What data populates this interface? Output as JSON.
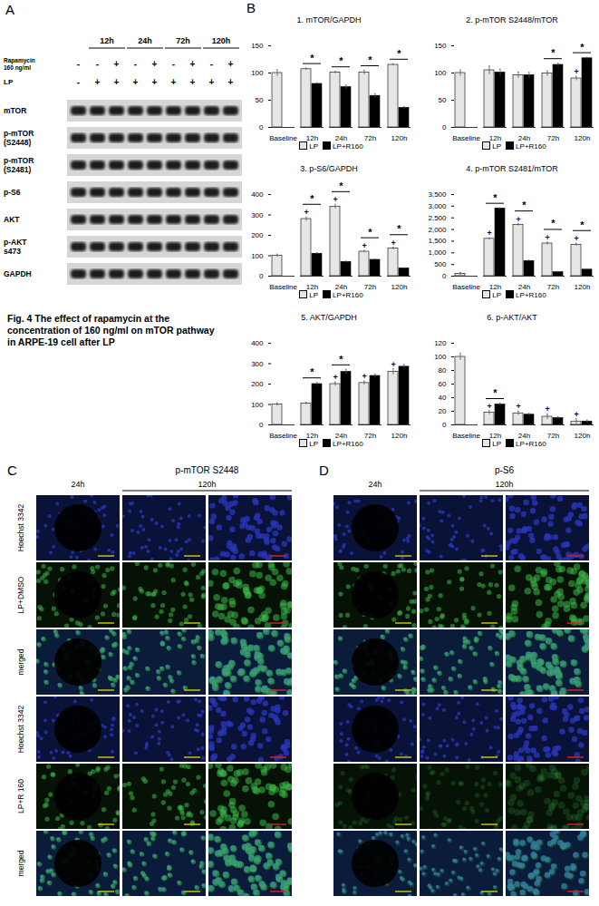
{
  "panel_a": {
    "label": "A",
    "times": [
      "12h",
      "24h",
      "72h",
      "120h"
    ],
    "treatments": [
      {
        "label": [
          "Rapamycin",
          "160 ng/ml"
        ],
        "signs": [
          "-",
          "-",
          "+",
          "-",
          "+",
          "-",
          "+",
          "-",
          "+"
        ]
      },
      {
        "label": [
          "LP"
        ],
        "signs": [
          "-",
          "+",
          "+",
          "+",
          "+",
          "+",
          "+",
          "+",
          "+"
        ]
      }
    ],
    "blots": [
      [
        "mTOR"
      ],
      [
        "p-mTOR",
        "(S2448)"
      ],
      [
        "p-mTOR",
        "(S2481)"
      ],
      [
        "p-S6"
      ],
      [
        "AKT"
      ],
      [
        "p-AKT",
        "s473"
      ],
      [
        "GAPDH"
      ]
    ]
  },
  "caption": "Fig. 4 The effect of rapamycin at the concentration of 160 ng/ml on mTOR pathway in ARPE-19 cell after LP",
  "panel_b_label": "B",
  "chart_data": [
    {
      "type": "bar",
      "title": "1. mTOR/GAPDH",
      "legend": "bottom",
      "categories": [
        "Baseline",
        "12h",
        "24h",
        "72h",
        "120h"
      ],
      "ylim": [
        0,
        150
      ],
      "yticks": [
        0,
        50,
        100,
        150
      ],
      "series": [
        {
          "name": "LP",
          "color": "#e6e6e6",
          "values": [
            100,
            107,
            101,
            101,
            115
          ],
          "errors": [
            6,
            2,
            2,
            4,
            2
          ]
        },
        {
          "name": "LP+R160",
          "color": "#000000",
          "values": [
            null,
            80,
            74,
            58,
            36
          ],
          "errors": [
            null,
            2,
            4,
            4,
            2
          ]
        }
      ],
      "annotations": [
        {
          "x": "12h",
          "text": "*"
        },
        {
          "x": "24h",
          "text": "*"
        },
        {
          "x": "72h",
          "text": "*"
        },
        {
          "x": "120h",
          "text": "*"
        }
      ]
    },
    {
      "type": "bar",
      "title": "2. p-mTOR S2448/mTOR",
      "legend": "bottom",
      "categories": [
        "Baseline",
        "12h",
        "24h",
        "72h",
        "120h"
      ],
      "ylim": [
        0,
        150
      ],
      "yticks": [
        0,
        50,
        100,
        150
      ],
      "series": [
        {
          "name": "LP",
          "color": "#e6e6e6",
          "values": [
            100,
            105,
            96,
            99,
            90
          ],
          "errors": [
            6,
            8,
            6,
            5,
            4
          ]
        },
        {
          "name": "LP+R160",
          "color": "#000000",
          "values": [
            null,
            101,
            96,
            115,
            127
          ],
          "errors": [
            null,
            6,
            5,
            3,
            2
          ]
        }
      ],
      "annotations": [
        {
          "x": "72h",
          "text": "*"
        },
        {
          "x": "120h",
          "text": "*"
        },
        {
          "x": "120h",
          "text": "+",
          "series": "LP"
        }
      ]
    },
    {
      "type": "bar",
      "title": "3. p-S6/GAPDH",
      "legend": "bottom",
      "categories": [
        "Baseline",
        "12h",
        "24h",
        "72h",
        "120h"
      ],
      "ylim": [
        0,
        400
      ],
      "yticks": [
        0,
        100,
        200,
        300,
        400
      ],
      "series": [
        {
          "name": "LP",
          "color": "#e6e6e6",
          "values": [
            100,
            280,
            340,
            120,
            135
          ],
          "errors": [
            8,
            10,
            12,
            6,
            6
          ]
        },
        {
          "name": "LP+R160",
          "color": "#000000",
          "values": [
            null,
            110,
            70,
            80,
            38
          ],
          "errors": [
            null,
            5,
            3,
            4,
            3
          ]
        }
      ],
      "annotations": [
        {
          "x": "12h",
          "text": "*"
        },
        {
          "x": "24h",
          "text": "*"
        },
        {
          "x": "72h",
          "text": "*"
        },
        {
          "x": "120h",
          "text": "*"
        },
        {
          "x": "12h",
          "text": "+",
          "series": "LP"
        },
        {
          "x": "24h",
          "text": "+",
          "series": "LP"
        },
        {
          "x": "72h",
          "text": "+",
          "series": "LP"
        },
        {
          "x": "120h",
          "text": "+",
          "series": "LP"
        }
      ]
    },
    {
      "type": "bar",
      "title": "4. p-mTOR S2481/mTOR",
      "legend": "bottom",
      "categories": [
        "Baseline",
        "12h",
        "24h",
        "72h",
        "120h"
      ],
      "ylim": [
        0,
        3500
      ],
      "yticks": [
        0,
        500,
        1000,
        1500,
        2000,
        2500,
        3000,
        3500
      ],
      "series": [
        {
          "name": "LP",
          "color": "#e6e6e6",
          "values": [
            100,
            1600,
            2200,
            1400,
            1350
          ],
          "errors": [
            60,
            40,
            50,
            60,
            60
          ]
        },
        {
          "name": "LP+R160",
          "color": "#000000",
          "values": [
            null,
            2900,
            650,
            170,
            280
          ],
          "errors": [
            null,
            30,
            40,
            30,
            20
          ]
        }
      ],
      "annotations": [
        {
          "x": "12h",
          "text": "*"
        },
        {
          "x": "24h",
          "text": "*"
        },
        {
          "x": "72h",
          "text": "*"
        },
        {
          "x": "120h",
          "text": "*"
        },
        {
          "x": "12h",
          "text": "+",
          "series": "LP"
        },
        {
          "x": "24h",
          "text": "+",
          "series": "LP"
        },
        {
          "x": "72h",
          "text": "+",
          "series": "LP"
        },
        {
          "x": "120h",
          "text": "+",
          "series": "LP"
        }
      ]
    },
    {
      "type": "bar",
      "title": "5. AKT/GAPDH",
      "legend": "bottom",
      "categories": [
        "Baseline",
        "12h",
        "24h",
        "72h",
        "120h"
      ],
      "ylim": [
        0,
        400
      ],
      "yticks": [
        0,
        100,
        200,
        300,
        400
      ],
      "series": [
        {
          "name": "LP",
          "color": "#e6e6e6",
          "values": [
            100,
            105,
            200,
            205,
            260
          ],
          "errors": [
            8,
            6,
            10,
            10,
            15
          ]
        },
        {
          "name": "LP+R160",
          "color": "#000000",
          "values": [
            null,
            200,
            260,
            240,
            285
          ],
          "errors": [
            null,
            8,
            12,
            10,
            12
          ]
        }
      ],
      "annotations": [
        {
          "x": "12h",
          "text": "*"
        },
        {
          "x": "24h",
          "text": "*"
        },
        {
          "x": "24h",
          "text": "+",
          "series": "LP"
        },
        {
          "x": "72h",
          "text": "+",
          "series": "LP"
        },
        {
          "x": "120h",
          "text": "+",
          "series": "LP"
        }
      ]
    },
    {
      "type": "bar",
      "title": "6. p-AKT/AKT",
      "legend": "bottom",
      "categories": [
        "Baseline",
        "12h",
        "24h",
        "72h",
        "120h"
      ],
      "ylim": [
        0,
        120
      ],
      "yticks": [
        0,
        20,
        40,
        60,
        80,
        100,
        120
      ],
      "series": [
        {
          "name": "LP",
          "color": "#e6e6e6",
          "values": [
            100,
            18,
            17,
            12,
            5
          ],
          "errors": [
            5,
            3,
            3,
            4,
            4
          ]
        },
        {
          "name": "LP+R160",
          "color": "#000000",
          "values": [
            null,
            30,
            15,
            10,
            5
          ],
          "errors": [
            null,
            2,
            2,
            2,
            2
          ]
        }
      ],
      "annotations": [
        {
          "x": "12h",
          "text": "*"
        },
        {
          "x": "12h",
          "text": "+",
          "series": "LP"
        },
        {
          "x": "24h",
          "text": "+",
          "series": "LP"
        },
        {
          "x": "72h",
          "text": "+",
          "series": "LP"
        },
        {
          "x": "120h",
          "text": "+",
          "series": "LP"
        }
      ]
    }
  ],
  "image_panels": [
    {
      "label": "C",
      "title": "p-mTOR S2448",
      "columns": [
        {
          "label": "24h",
          "span": 1
        },
        {
          "label": "120h",
          "span": 2
        }
      ],
      "rows": [
        "Hoechst 3342",
        "LP+DMSO",
        "merged",
        "Hoechst 3342",
        "LP+R 160",
        "merged"
      ]
    },
    {
      "label": "D",
      "title": "p-S6",
      "columns": [
        {
          "label": "24h",
          "span": 1
        },
        {
          "label": "120h",
          "span": 2
        }
      ]
    }
  ]
}
